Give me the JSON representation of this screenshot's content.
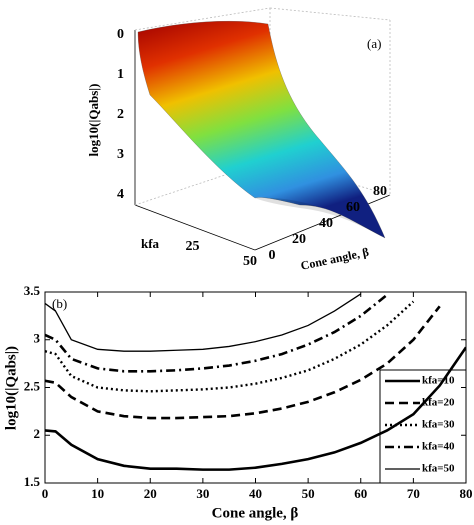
{
  "chart_data": [
    {
      "type": "surface",
      "annotation": "(a)",
      "zlabel": "log10(|Qabs|)",
      "xlabel": "kfa",
      "ylabel": "Cone angle, β",
      "zticks": [
        0,
        1,
        2,
        3,
        4
      ],
      "xticks": [
        25,
        50
      ],
      "yticks": [
        0,
        20,
        40,
        60,
        80
      ],
      "colormap": "jet"
    },
    {
      "type": "line",
      "annotation": "(b)",
      "xlabel": "Cone angle, β",
      "ylabel": "log10(|Qabs|)",
      "x": [
        0,
        2,
        5,
        10,
        15,
        20,
        25,
        30,
        35,
        40,
        45,
        50,
        55,
        60,
        65,
        70,
        75,
        80
      ],
      "series": [
        {
          "name": "kfa=10",
          "color": "#000000",
          "dash": "solid",
          "width": 2.6,
          "values": [
            2.05,
            2.04,
            1.9,
            1.75,
            1.68,
            1.65,
            1.65,
            1.64,
            1.64,
            1.66,
            1.7,
            1.75,
            1.82,
            1.92,
            2.05,
            2.22,
            2.52,
            2.92
          ]
        },
        {
          "name": "kfa=20",
          "color": "#000000",
          "dash": "dashed",
          "width": 2.6,
          "values": [
            2.57,
            2.55,
            2.4,
            2.25,
            2.2,
            2.18,
            2.18,
            2.19,
            2.2,
            2.23,
            2.28,
            2.35,
            2.45,
            2.58,
            2.75,
            3.0,
            3.35,
            null
          ]
        },
        {
          "name": "kfa=30",
          "color": "#000000",
          "dash": "dotted",
          "width": 2.4,
          "values": [
            2.88,
            2.85,
            2.62,
            2.5,
            2.47,
            2.46,
            2.47,
            2.48,
            2.5,
            2.54,
            2.6,
            2.68,
            2.8,
            2.95,
            3.15,
            3.4,
            null,
            null
          ]
        },
        {
          "name": "kfa=40",
          "color": "#000000",
          "dash": "dashdot",
          "width": 2.6,
          "values": [
            3.05,
            3.0,
            2.8,
            2.7,
            2.67,
            2.67,
            2.68,
            2.7,
            2.73,
            2.78,
            2.85,
            2.95,
            3.08,
            3.25,
            3.47,
            null,
            null,
            null
          ]
        },
        {
          "name": "kfa=50",
          "color": "#000000",
          "dash": "solid",
          "width": 1.3,
          "values": [
            3.38,
            3.3,
            3.0,
            2.9,
            2.88,
            2.88,
            2.89,
            2.9,
            2.93,
            2.98,
            3.05,
            3.15,
            3.3,
            3.48,
            null,
            null,
            null,
            null
          ]
        }
      ],
      "xlim": [
        0,
        80
      ],
      "ylim": [
        1.5,
        3.5
      ],
      "xticks": [
        0,
        10,
        20,
        30,
        40,
        50,
        60,
        70,
        80
      ],
      "yticks": [
        1.5,
        2,
        2.5,
        3,
        3.5
      ],
      "legend": "lower right",
      "grid": false
    }
  ]
}
